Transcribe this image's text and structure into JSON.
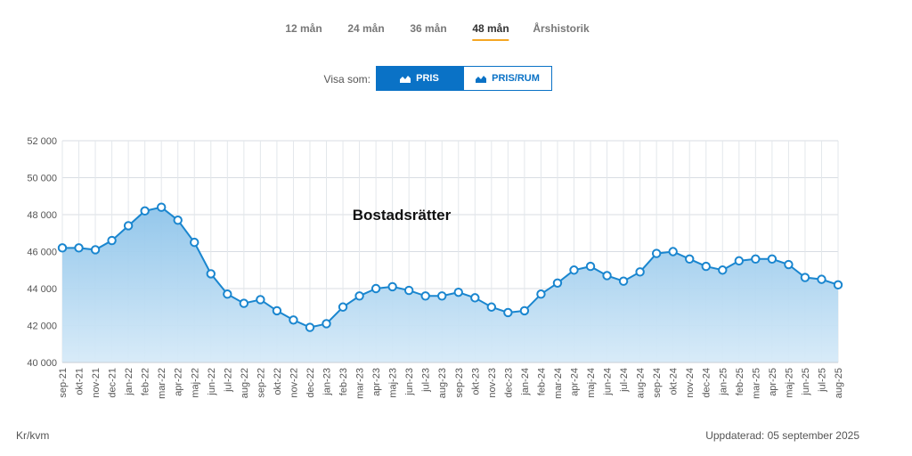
{
  "tabs": [
    {
      "label": "12 mån",
      "active": false
    },
    {
      "label": "24 mån",
      "active": false
    },
    {
      "label": "36 mån",
      "active": false
    },
    {
      "label": "48 mån",
      "active": true
    },
    {
      "label": "Årshistorik",
      "active": false
    }
  ],
  "display_toggle": {
    "label": "Visa som:",
    "options": [
      {
        "label": "PRIS",
        "selected": true,
        "icon": "area-chart-icon"
      },
      {
        "label": "PRIS/RUM",
        "selected": false,
        "icon": "area-chart-icon"
      }
    ]
  },
  "colors": {
    "accent": "#0a72c6",
    "line": "#1a86cf",
    "tab_underline": "#f5a623"
  },
  "footer": {
    "unit": "Kr/kvm",
    "updated": "Uppdaterad: 05 september 2025"
  },
  "chart_data": {
    "type": "area",
    "title": "Bostadsrätter",
    "xlabel": "",
    "ylabel": "",
    "ylim": [
      40000,
      52000
    ],
    "yticks": [
      40000,
      42000,
      44000,
      46000,
      48000,
      50000,
      52000
    ],
    "ytick_labels": [
      "40 000",
      "42 000",
      "44 000",
      "46 000",
      "48 000",
      "50 000",
      "52 000"
    ],
    "grid": true,
    "categories": [
      "sep-21",
      "okt-21",
      "nov-21",
      "dec-21",
      "jan-22",
      "feb-22",
      "mar-22",
      "apr-22",
      "maj-22",
      "jun-22",
      "jul-22",
      "aug-22",
      "sep-22",
      "okt-22",
      "nov-22",
      "dec-22",
      "jan-23",
      "feb-23",
      "mar-23",
      "apr-23",
      "maj-23",
      "jun-23",
      "jul-23",
      "aug-23",
      "sep-23",
      "okt-23",
      "nov-23",
      "dec-23",
      "jan-24",
      "feb-24",
      "mar-24",
      "apr-24",
      "maj-24",
      "jun-24",
      "jul-24",
      "aug-24",
      "sep-24",
      "okt-24",
      "nov-24",
      "dec-24",
      "jan-25",
      "feb-25",
      "mar-25",
      "apr-25",
      "maj-25",
      "jun-25",
      "jul-25",
      "aug-25"
    ],
    "values": [
      46200,
      46200,
      46100,
      46600,
      47400,
      48200,
      48400,
      47700,
      46500,
      44800,
      43700,
      43200,
      43400,
      42800,
      42300,
      41900,
      42100,
      43000,
      43600,
      44000,
      44100,
      43900,
      43600,
      43600,
      43800,
      43500,
      43000,
      42700,
      42800,
      43700,
      44300,
      45000,
      45200,
      44700,
      44400,
      44900,
      45900,
      46000,
      45600,
      45200,
      45000,
      45500,
      45600,
      45600,
      45300,
      44600,
      44500,
      44200
    ]
  }
}
